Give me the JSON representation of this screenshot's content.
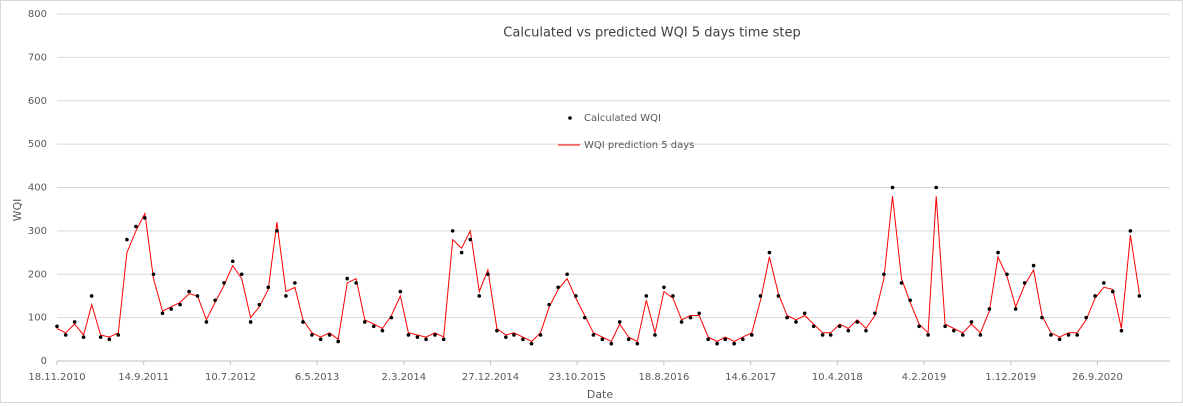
{
  "chart_data": {
    "type": "line-scatter",
    "title": "Calculated vs predicted WQI 5 days time step",
    "x_label": "Date",
    "y_label": "WQI",
    "xlim": [
      "2010-11-18",
      "2021-06-04"
    ],
    "xticks": [
      {
        "value": "2010-11-18",
        "label": "18.11.2010"
      },
      {
        "value": "2011-09-14",
        "label": "14.9.2011"
      },
      {
        "value": "2012-07-10",
        "label": "10.7.2012"
      },
      {
        "value": "2013-05-06",
        "label": "6.5.2013"
      },
      {
        "value": "2014-03-02",
        "label": "2.3.2014"
      },
      {
        "value": "2014-12-27",
        "label": "27.12.2014"
      },
      {
        "value": "2015-10-23",
        "label": "23.10.2015"
      },
      {
        "value": "2016-08-18",
        "label": "18.8.2016"
      },
      {
        "value": "2017-06-14",
        "label": "14.6.2017"
      },
      {
        "value": "2018-04-10",
        "label": "10.4.2018"
      },
      {
        "value": "2019-02-04",
        "label": "4.2.2019"
      },
      {
        "value": "2019-12-01",
        "label": "1.12.2019"
      },
      {
        "value": "2020-09-26",
        "label": "26.9.2020"
      }
    ],
    "ylim": [
      0,
      800
    ],
    "yticks": [
      0,
      100,
      200,
      300,
      400,
      500,
      600,
      700,
      800
    ],
    "grid": true,
    "legend": "inside-center",
    "x": [
      "2010-11-18",
      "2010-12-18",
      "2011-01-18",
      "2011-02-18",
      "2011-03-18",
      "2011-04-18",
      "2011-05-18",
      "2011-06-18",
      "2011-07-18",
      "2011-08-18",
      "2011-09-18",
      "2011-10-18",
      "2011-11-18",
      "2011-12-18",
      "2012-01-18",
      "2012-02-18",
      "2012-03-18",
      "2012-04-18",
      "2012-05-18",
      "2012-06-18",
      "2012-07-18",
      "2012-08-18",
      "2012-09-18",
      "2012-10-18",
      "2012-11-18",
      "2012-12-18",
      "2013-01-18",
      "2013-02-18",
      "2013-03-18",
      "2013-04-18",
      "2013-05-18",
      "2013-06-18",
      "2013-07-18",
      "2013-08-18",
      "2013-09-18",
      "2013-10-18",
      "2013-11-18",
      "2013-12-18",
      "2014-01-18",
      "2014-02-18",
      "2014-03-18",
      "2014-04-18",
      "2014-05-18",
      "2014-06-18",
      "2014-07-18",
      "2014-08-18",
      "2014-09-18",
      "2014-10-18",
      "2014-11-18",
      "2014-12-18",
      "2015-01-18",
      "2015-02-18",
      "2015-03-18",
      "2015-04-18",
      "2015-05-18",
      "2015-06-18",
      "2015-07-18",
      "2015-08-18",
      "2015-09-18",
      "2015-10-18",
      "2015-11-18",
      "2015-12-18",
      "2016-01-18",
      "2016-02-18",
      "2016-03-18",
      "2016-04-18",
      "2016-05-18",
      "2016-06-18",
      "2016-07-18",
      "2016-08-18",
      "2016-09-18",
      "2016-10-18",
      "2016-11-18",
      "2016-12-18",
      "2017-01-18",
      "2017-02-18",
      "2017-03-18",
      "2017-04-18",
      "2017-05-18",
      "2017-06-18",
      "2017-07-18",
      "2017-08-18",
      "2017-09-18",
      "2017-10-18",
      "2017-11-18",
      "2017-12-18",
      "2018-01-18",
      "2018-02-18",
      "2018-03-18",
      "2018-04-18",
      "2018-05-18",
      "2018-06-18",
      "2018-07-18",
      "2018-08-18",
      "2018-09-18",
      "2018-10-18",
      "2018-11-18",
      "2018-12-18",
      "2019-01-18",
      "2019-02-18",
      "2019-03-18",
      "2019-04-18",
      "2019-05-18",
      "2019-06-18",
      "2019-07-18",
      "2019-08-18",
      "2019-09-18",
      "2019-10-18",
      "2019-11-18",
      "2019-12-18",
      "2020-01-18",
      "2020-02-18",
      "2020-03-18",
      "2020-04-18",
      "2020-05-18",
      "2020-06-18",
      "2020-07-18",
      "2020-08-18",
      "2020-09-18",
      "2020-10-18",
      "2020-11-18",
      "2020-12-18",
      "2021-01-18",
      "2021-02-18"
    ],
    "series": [
      {
        "name": "Calculated WQI",
        "color": "#000000",
        "kind": "points",
        "values": [
          80,
          60,
          90,
          55,
          150,
          55,
          50,
          60,
          280,
          310,
          330,
          200,
          110,
          120,
          130,
          160,
          150,
          90,
          140,
          180,
          230,
          200,
          90,
          130,
          170,
          300,
          150,
          180,
          90,
          60,
          50,
          60,
          45,
          190,
          180,
          90,
          80,
          70,
          100,
          160,
          60,
          55,
          50,
          60,
          50,
          300,
          250,
          280,
          150,
          200,
          70,
          55,
          60,
          50,
          40,
          60,
          130,
          170,
          200,
          150,
          100,
          60,
          50,
          40,
          90,
          50,
          40,
          150,
          60,
          170,
          150,
          90,
          100,
          110,
          50,
          40,
          50,
          40,
          50,
          60,
          150,
          250,
          150,
          100,
          90,
          110,
          80,
          60,
          60,
          80,
          70,
          90,
          70,
          110,
          200,
          400,
          180,
          140,
          80,
          60,
          400,
          80,
          70,
          60,
          90,
          60,
          120,
          250,
          200,
          120,
          180,
          220,
          100,
          60,
          50,
          60,
          60,
          100,
          150,
          180,
          160,
          70,
          300,
          150
        ]
      },
      {
        "name": "WQI prediction 5 days",
        "color": "#ff0000",
        "kind": "line",
        "values": [
          75,
          65,
          85,
          60,
          130,
          60,
          55,
          65,
          250,
          300,
          340,
          190,
          115,
          125,
          135,
          155,
          150,
          95,
          135,
          175,
          220,
          190,
          100,
          125,
          165,
          320,
          160,
          170,
          95,
          65,
          55,
          65,
          50,
          180,
          190,
          95,
          85,
          75,
          105,
          150,
          65,
          60,
          55,
          65,
          55,
          280,
          260,
          300,
          160,
          210,
          75,
          60,
          65,
          55,
          45,
          65,
          125,
          165,
          190,
          145,
          105,
          65,
          55,
          45,
          85,
          55,
          45,
          140,
          65,
          160,
          145,
          95,
          105,
          105,
          55,
          45,
          55,
          45,
          55,
          65,
          140,
          240,
          155,
          105,
          95,
          105,
          85,
          65,
          65,
          85,
          75,
          95,
          75,
          105,
          190,
          380,
          190,
          135,
          85,
          65,
          380,
          85,
          75,
          65,
          85,
          65,
          115,
          240,
          195,
          125,
          175,
          210,
          105,
          65,
          55,
          65,
          65,
          95,
          145,
          170,
          165,
          75,
          290,
          155
        ]
      }
    ]
  }
}
